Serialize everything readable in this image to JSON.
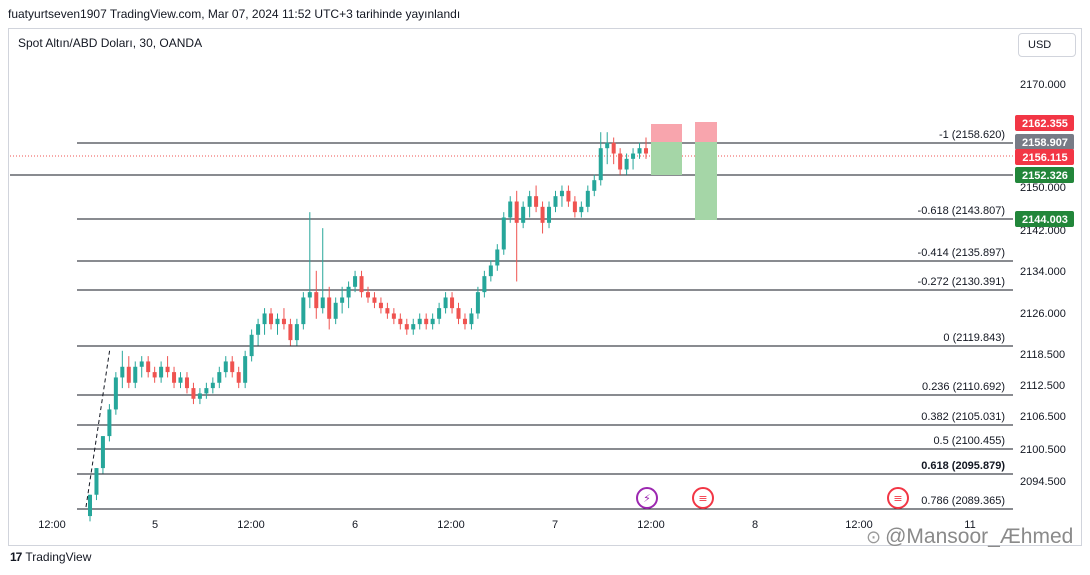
{
  "header": {
    "published_line": "fuatyurtseven1907 TradingView.com, Mar 07, 2024 11:52 UTC+3 tarihinde yayınlandı"
  },
  "chart_header": {
    "symbol_line": "Spot Altın/ABD Doları, 30, OANDA",
    "currency_button": "USD"
  },
  "footer": {
    "brand": "TradingView",
    "logo_icon": "tradingview-logo-icon"
  },
  "watermark": {
    "text": "@Mansoor_Æhmed",
    "icon": "zhihu-icon"
  },
  "colors": {
    "up": "#26a69a",
    "down": "#ef5350",
    "level_line": "#131722",
    "price_badge_red": "#f23645",
    "price_badge_green": "#22863a",
    "price_badge_gray": "#787b86",
    "target_box": "#a5d6a7",
    "stop_box": "#f8a5ad"
  },
  "chart_data": {
    "type": "candlestick",
    "title": "Spot Altın/ABD Doları, 30, OANDA",
    "ylim": [
      2090,
      2176
    ],
    "y_ticks": [
      "2170.000",
      "2150.000",
      "2142.000",
      "2134.000",
      "2126.000",
      "2118.500",
      "2112.500",
      "2106.500",
      "2100.500",
      "2094.500"
    ],
    "y_tick_values": [
      2170,
      2150,
      2142,
      2134,
      2126,
      2118.5,
      2112.5,
      2106.5,
      2100.5,
      2094.5
    ],
    "x_ticks": [
      "12:00",
      "5",
      "12:00",
      "6",
      "12:00",
      "7",
      "12:00",
      "8",
      "12:00",
      "11"
    ],
    "grid": false,
    "fib_levels": [
      {
        "label": "-1 (2158.620)",
        "value": 2158.62
      },
      {
        "label": "-0.618 (2143.807)",
        "value": 2143.807
      },
      {
        "label": "-0.414 (2135.897)",
        "value": 2135.897
      },
      {
        "label": "-0.272 (2130.391)",
        "value": 2130.391
      },
      {
        "label": "0 (2119.843)",
        "value": 2119.843
      },
      {
        "label": "0.236 (2110.692)",
        "value": 2110.692
      },
      {
        "label": "0.382 (2105.031)",
        "value": 2105.031
      },
      {
        "label": "0.5 (2100.455)",
        "value": 2100.455
      },
      {
        "label": "0.618 (2095.879)",
        "value": 2095.879,
        "bold": true
      },
      {
        "label": "0.786 (2089.365)",
        "value": 2089.365
      }
    ],
    "horizontal_line": {
      "value": 2152.326
    },
    "price_badges": [
      {
        "label": "2162.355",
        "value": 2162.355,
        "color": "red"
      },
      {
        "label": "2158.907",
        "value": 2158.907,
        "color": "gray"
      },
      {
        "label": "2156.115",
        "value": 2156.115,
        "color": "red"
      },
      {
        "label": "2152.326",
        "value": 2152.326,
        "color": "green"
      },
      {
        "label": "2144.003",
        "value": 2144.003,
        "color": "green"
      }
    ],
    "positions": [
      {
        "entry": 2158.62,
        "stop": 2162.355,
        "target": 2152.326
      },
      {
        "entry": 2158.62,
        "stop": 2162.355,
        "target": 2144.003
      }
    ],
    "last_price": 2156.115,
    "candles": [
      [
        2089,
        2093,
        2088,
        2093
      ],
      [
        2093,
        2098,
        2092,
        2098
      ],
      [
        2098,
        2104,
        2097,
        2104
      ],
      [
        2104,
        2110,
        2103,
        2109
      ],
      [
        2109,
        2116,
        2108,
        2115
      ],
      [
        2115,
        2120,
        2113,
        2117
      ],
      [
        2117,
        2119,
        2113,
        2114
      ],
      [
        2114,
        2118,
        2113,
        2117
      ],
      [
        2117,
        2119,
        2115,
        2118
      ],
      [
        2118,
        2119,
        2115,
        2116
      ],
      [
        2116,
        2117,
        2114,
        2115
      ],
      [
        2115,
        2118,
        2114,
        2117
      ],
      [
        2117,
        2119,
        2115,
        2116
      ],
      [
        2116,
        2117,
        2113,
        2114
      ],
      [
        2114,
        2116,
        2113,
        2115
      ],
      [
        2115,
        2116,
        2112,
        2113
      ],
      [
        2113,
        2114,
        2110,
        2111
      ],
      [
        2111,
        2113,
        2110,
        2112
      ],
      [
        2112,
        2114,
        2111,
        2113
      ],
      [
        2113,
        2115,
        2112,
        2114
      ],
      [
        2114,
        2117,
        2113,
        2116
      ],
      [
        2116,
        2119,
        2115,
        2118
      ],
      [
        2118,
        2119,
        2115,
        2116
      ],
      [
        2116,
        2117,
        2113,
        2114
      ],
      [
        2114,
        2120,
        2113,
        2119
      ],
      [
        2119,
        2124,
        2118,
        2123
      ],
      [
        2123,
        2126,
        2121,
        2125
      ],
      [
        2125,
        2128,
        2123,
        2127
      ],
      [
        2127,
        2128,
        2124,
        2125
      ],
      [
        2125,
        2127,
        2123,
        2126
      ],
      [
        2126,
        2128,
        2124,
        2125
      ],
      [
        2125,
        2126,
        2121,
        2122
      ],
      [
        2122,
        2126,
        2121,
        2125
      ],
      [
        2125,
        2131,
        2124,
        2130
      ],
      [
        2130,
        2146,
        2128,
        2131
      ],
      [
        2131,
        2135,
        2126,
        2128
      ],
      [
        2128,
        2143,
        2127,
        2130
      ],
      [
        2130,
        2132,
        2124,
        2126
      ],
      [
        2126,
        2130,
        2125,
        2129
      ],
      [
        2129,
        2132,
        2127,
        2130
      ],
      [
        2130,
        2133,
        2128,
        2132
      ],
      [
        2132,
        2135,
        2131,
        2134
      ],
      [
        2134,
        2135,
        2130,
        2131
      ],
      [
        2131,
        2132,
        2129,
        2130
      ],
      [
        2130,
        2131,
        2128,
        2129
      ],
      [
        2129,
        2130,
        2127,
        2128
      ],
      [
        2128,
        2129,
        2126,
        2127
      ],
      [
        2127,
        2128,
        2125,
        2126
      ],
      [
        2126,
        2127,
        2124,
        2125
      ],
      [
        2125,
        2126,
        2123,
        2124
      ],
      [
        2124,
        2126,
        2123,
        2125
      ],
      [
        2125,
        2127,
        2124,
        2126
      ],
      [
        2126,
        2127,
        2124,
        2125
      ],
      [
        2125,
        2127,
        2124,
        2126
      ],
      [
        2126,
        2129,
        2125,
        2128
      ],
      [
        2128,
        2131,
        2127,
        2130
      ],
      [
        2130,
        2131,
        2127,
        2128
      ],
      [
        2128,
        2129,
        2125,
        2126
      ],
      [
        2126,
        2127,
        2124,
        2125
      ],
      [
        2125,
        2128,
        2124,
        2127
      ],
      [
        2127,
        2132,
        2126,
        2131
      ],
      [
        2131,
        2135,
        2130,
        2134
      ],
      [
        2134,
        2137,
        2133,
        2136
      ],
      [
        2136,
        2140,
        2135,
        2139
      ],
      [
        2139,
        2146,
        2138,
        2145
      ],
      [
        2145,
        2149,
        2144,
        2148
      ],
      [
        2148,
        2150,
        2133,
        2144
      ],
      [
        2144,
        2148,
        2143,
        2147
      ],
      [
        2147,
        2150,
        2145,
        2149
      ],
      [
        2149,
        2151,
        2146,
        2147
      ],
      [
        2147,
        2148,
        2142,
        2144
      ],
      [
        2144,
        2148,
        2143,
        2147
      ],
      [
        2147,
        2150,
        2146,
        2149
      ],
      [
        2149,
        2151,
        2147,
        2150
      ],
      [
        2150,
        2151,
        2147,
        2148
      ],
      [
        2148,
        2149,
        2145,
        2146
      ],
      [
        2146,
        2148,
        2145,
        2147
      ],
      [
        2147,
        2151,
        2146,
        2150
      ],
      [
        2150,
        2153,
        2149,
        2152
      ],
      [
        2152,
        2161,
        2151,
        2158
      ],
      [
        2158,
        2161,
        2155,
        2159
      ],
      [
        2159,
        2160,
        2155,
        2157
      ],
      [
        2157,
        2158,
        2153,
        2154
      ],
      [
        2154,
        2157,
        2153,
        2156
      ],
      [
        2156,
        2158,
        2154,
        2157
      ],
      [
        2157,
        2159,
        2156,
        2158
      ],
      [
        2158,
        2160,
        2156,
        2157
      ]
    ]
  }
}
